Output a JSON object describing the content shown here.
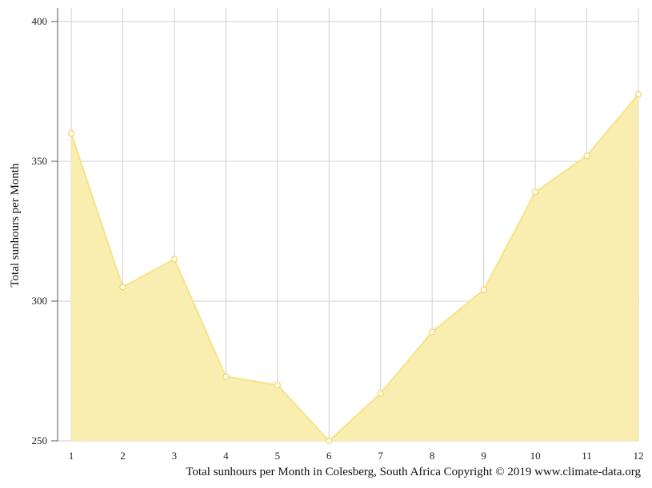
{
  "chart_data": {
    "type": "area",
    "x": [
      1,
      2,
      3,
      4,
      5,
      6,
      7,
      8,
      9,
      10,
      11,
      12
    ],
    "values": [
      360,
      305,
      315,
      273,
      270,
      249,
      267,
      289,
      304,
      339,
      352,
      374
    ],
    "xlabel": "",
    "ylabel": "Total sunhours per Month",
    "ylim": [
      250,
      400
    ],
    "yticks": [
      250,
      300,
      350,
      400
    ],
    "xticks": [
      1,
      2,
      3,
      4,
      5,
      6,
      7,
      8,
      9,
      10,
      11,
      12
    ],
    "grid": true,
    "colors": {
      "fill": "#f9eeaf",
      "line": "#f6e38a",
      "marker_fill": "#ffffff",
      "marker_stroke": "#f1d55a",
      "grid": "#d0d0d0",
      "axis": "#555555"
    }
  },
  "caption": "Total sunhours per Month in Colesberg, South Africa Copyright © 2019 www.climate-data.org"
}
